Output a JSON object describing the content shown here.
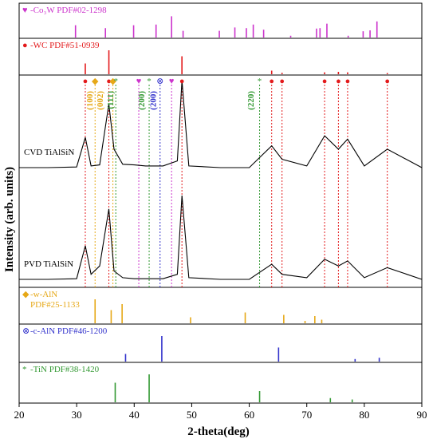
{
  "chart_data": {
    "type": "line",
    "xlabel": "2-theta(deg)",
    "ylabel": "Intensity (arb. units)",
    "xlim": [
      20,
      90
    ],
    "xticks": [
      "20",
      "30",
      "40",
      "50",
      "60",
      "70",
      "80",
      "90"
    ],
    "reference_panels_top": [
      {
        "title": "-Co₃W PDF#02-1298",
        "marker": "♥",
        "color": "#cc33cc",
        "peaks": [
          [
            29.8,
            0.55
          ],
          [
            35.0,
            0.42
          ],
          [
            39.9,
            0.55
          ],
          [
            43.8,
            0.58
          ],
          [
            46.5,
            0.95
          ],
          [
            48.5,
            0.3
          ],
          [
            54.8,
            0.3
          ],
          [
            57.5,
            0.45
          ],
          [
            59.5,
            0.42
          ],
          [
            60.7,
            0.58
          ],
          [
            62.5,
            0.35
          ],
          [
            67.2,
            0.08
          ],
          [
            71.7,
            0.4
          ],
          [
            72.3,
            0.42
          ],
          [
            73.5,
            0.62
          ],
          [
            77.2,
            0.08
          ],
          [
            79.8,
            0.28
          ],
          [
            81.0,
            0.32
          ],
          [
            82.2,
            0.72
          ]
        ]
      },
      {
        "title": "-WC PDF#51-0939",
        "marker": "●",
        "color": "#e31a1c",
        "peaks": [
          [
            31.5,
            0.45
          ],
          [
            35.6,
            1.0
          ],
          [
            48.3,
            0.75
          ],
          [
            63.9,
            0.15
          ],
          [
            65.7,
            0.06
          ],
          [
            73.1,
            0.08
          ],
          [
            75.5,
            0.1
          ],
          [
            77.1,
            0.08
          ],
          [
            84.0,
            0.05
          ]
        ]
      }
    ],
    "main_panel": {
      "series": [
        {
          "name": "CVD TiAlSiN",
          "points": [
            [
              20,
              0.0
            ],
            [
              25,
              0.0
            ],
            [
              30,
              0.02
            ],
            [
              31.5,
              0.9
            ],
            [
              32.5,
              0.05
            ],
            [
              34,
              0.08
            ],
            [
              35.6,
              1.9
            ],
            [
              36.5,
              0.55
            ],
            [
              38,
              0.1
            ],
            [
              40,
              0.08
            ],
            [
              42,
              0.05
            ],
            [
              45,
              0.05
            ],
            [
              47.5,
              0.2
            ],
            [
              48.3,
              2.6
            ],
            [
              49.5,
              0.05
            ],
            [
              55,
              0.0
            ],
            [
              60,
              0.0
            ],
            [
              63.9,
              0.65
            ],
            [
              65.7,
              0.25
            ],
            [
              70,
              0.05
            ],
            [
              73.1,
              0.95
            ],
            [
              75.5,
              0.55
            ],
            [
              77.1,
              0.85
            ],
            [
              80,
              0.05
            ],
            [
              84.0,
              0.55
            ],
            [
              90,
              0.0
            ]
          ]
        },
        {
          "name": "PVD TiAlSiN",
          "points": [
            [
              20,
              0.0
            ],
            [
              25,
              0.0
            ],
            [
              30,
              0.02
            ],
            [
              31.5,
              1.0
            ],
            [
              32.5,
              0.15
            ],
            [
              34,
              0.4
            ],
            [
              35.6,
              2.1
            ],
            [
              36.5,
              0.25
            ],
            [
              38,
              0.05
            ],
            [
              40,
              0.02
            ],
            [
              45,
              0.02
            ],
            [
              47.5,
              0.15
            ],
            [
              48.3,
              2.5
            ],
            [
              49.5,
              0.05
            ],
            [
              55,
              0.0
            ],
            [
              60,
              0.0
            ],
            [
              63.9,
              0.45
            ],
            [
              65.7,
              0.15
            ],
            [
              70,
              0.05
            ],
            [
              73.1,
              0.6
            ],
            [
              75.5,
              0.4
            ],
            [
              77.1,
              0.55
            ],
            [
              80,
              0.05
            ],
            [
              84.0,
              0.35
            ],
            [
              90,
              0.0
            ]
          ]
        }
      ],
      "markers": [
        {
          "x": 31.5,
          "symbol": "●",
          "color": "#e31a1c"
        },
        {
          "x": 33.2,
          "symbol": "◆",
          "color": "#e6a817"
        },
        {
          "x": 35.6,
          "symbol": "●",
          "color": "#e31a1c"
        },
        {
          "x": 36.3,
          "symbol": "◆",
          "color": "#e6a817"
        },
        {
          "x": 36.8,
          "symbol": "*",
          "color": "#339933"
        },
        {
          "x": 40.8,
          "symbol": "♥",
          "color": "#cc33cc"
        },
        {
          "x": 42.6,
          "symbol": "*",
          "color": "#339933"
        },
        {
          "x": 44.5,
          "symbol": "⊗",
          "color": "#3333cc"
        },
        {
          "x": 46.5,
          "symbol": "♥",
          "color": "#cc33cc"
        },
        {
          "x": 48.3,
          "symbol": "●",
          "color": "#e31a1c"
        },
        {
          "x": 61.8,
          "symbol": "*",
          "color": "#339933"
        },
        {
          "x": 63.9,
          "symbol": "●",
          "color": "#e31a1c"
        },
        {
          "x": 65.7,
          "symbol": "●",
          "color": "#e31a1c"
        },
        {
          "x": 73.1,
          "symbol": "●",
          "color": "#e31a1c"
        },
        {
          "x": 75.5,
          "symbol": "●",
          "color": "#e31a1c"
        },
        {
          "x": 77.1,
          "symbol": "●",
          "color": "#e31a1c"
        },
        {
          "x": 84.0,
          "symbol": "●",
          "color": "#e31a1c"
        }
      ],
      "annotations": [
        {
          "text": "(100)",
          "x": 33.2,
          "color": "#e6a817"
        },
        {
          "text": "(002)",
          "x": 35.0,
          "color": "#e6a817"
        },
        {
          "text": "(111)",
          "x": 36.8,
          "color": "#339933"
        },
        {
          "text": "(200)",
          "x": 42.2,
          "color": "#339933"
        },
        {
          "text": "(200)",
          "x": 44.2,
          "color": "#3333cc"
        },
        {
          "text": "(220)",
          "x": 61.2,
          "color": "#339933"
        }
      ]
    },
    "reference_panels_bottom": [
      {
        "title": "-w-AlN",
        "subtitle": "PDF#25-1133",
        "marker": "◆",
        "color": "#e6a817",
        "peaks": [
          [
            33.2,
            1.0
          ],
          [
            36.0,
            0.55
          ],
          [
            37.9,
            0.8
          ],
          [
            49.8,
            0.25
          ],
          [
            59.3,
            0.45
          ],
          [
            66.0,
            0.35
          ],
          [
            69.7,
            0.1
          ],
          [
            71.4,
            0.3
          ],
          [
            72.6,
            0.15
          ]
        ]
      },
      {
        "title": "-c-AlN PDF#46-1200",
        "marker": "⊗",
        "color": "#3333cc",
        "peaks": [
          [
            38.5,
            0.3
          ],
          [
            44.8,
            1.0
          ],
          [
            65.1,
            0.55
          ],
          [
            78.4,
            0.1
          ],
          [
            82.6,
            0.15
          ]
        ]
      },
      {
        "title": "-TiN PDF#38-1420",
        "marker": "*",
        "color": "#339933",
        "peaks": [
          [
            36.7,
            0.7
          ],
          [
            42.6,
            1.0
          ],
          [
            61.8,
            0.4
          ],
          [
            74.1,
            0.15
          ],
          [
            77.9,
            0.1
          ]
        ]
      }
    ]
  }
}
